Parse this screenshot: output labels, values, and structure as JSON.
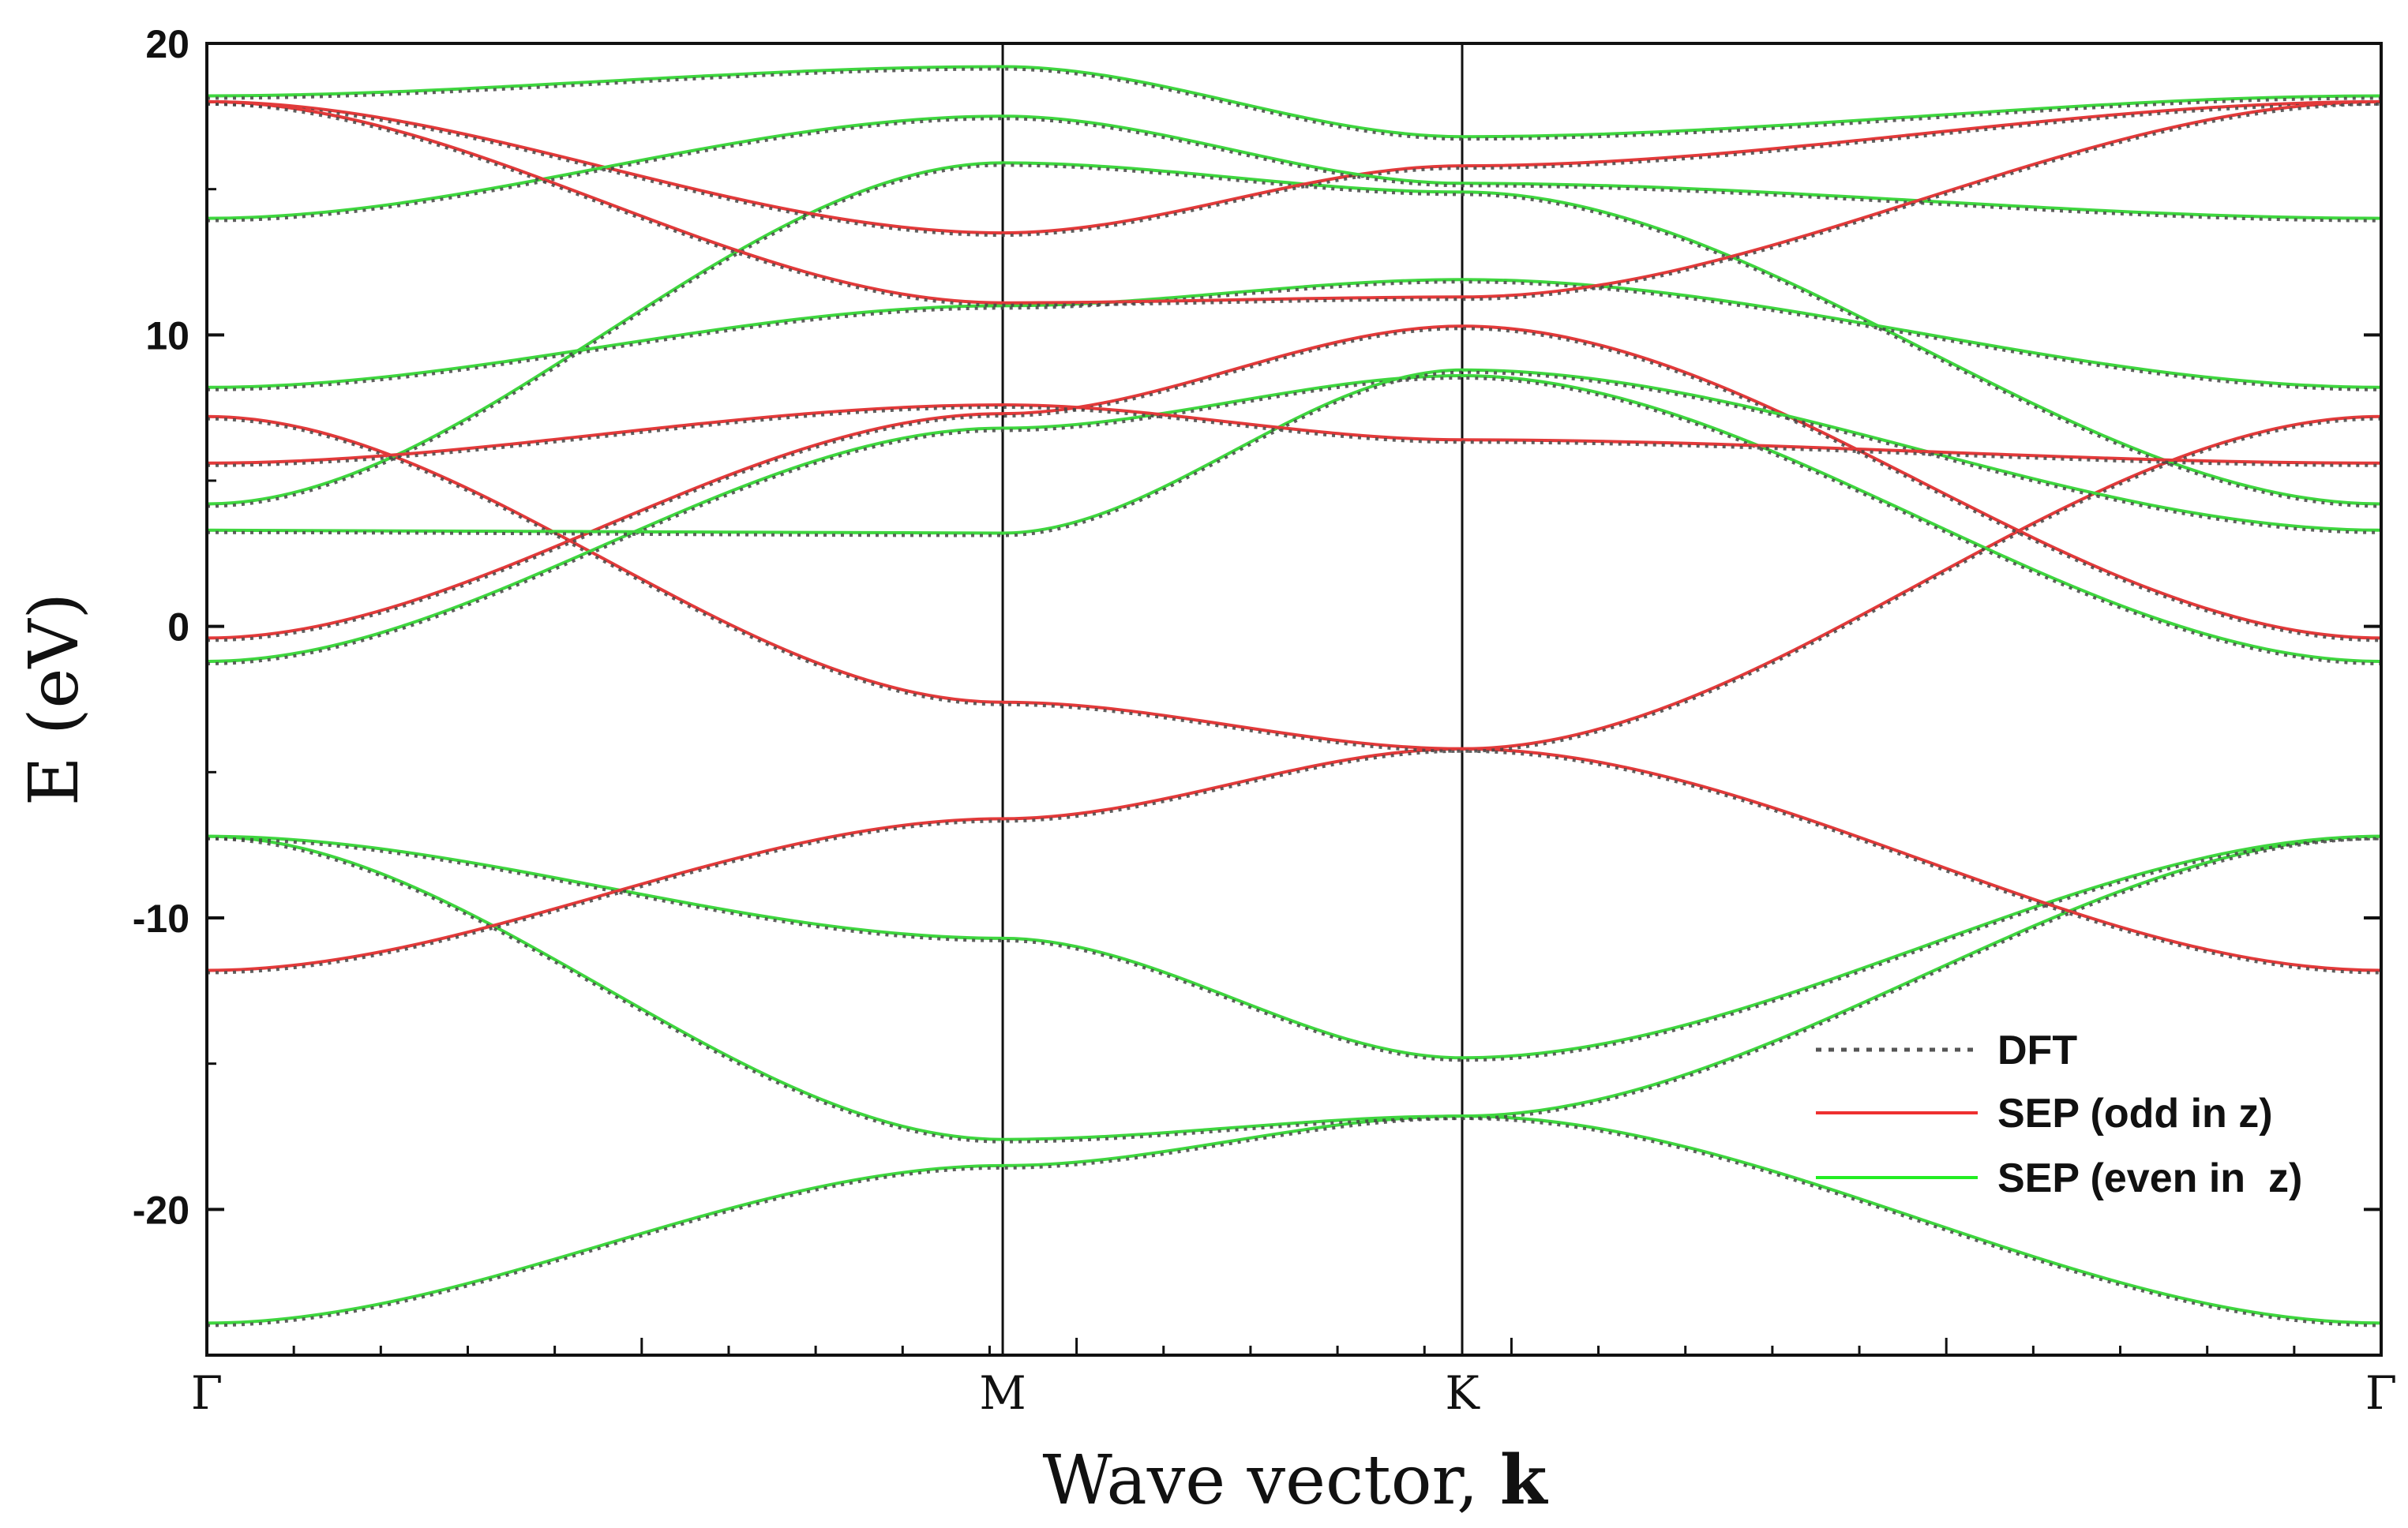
{
  "chart_data": {
    "type": "line",
    "title": "",
    "xlabel_main": "Wave vector, ",
    "xlabel_bold": "k",
    "ylabel": "E (eV)",
    "ylim": [
      -25,
      20
    ],
    "yticks": [
      20,
      10,
      0,
      -10,
      -20
    ],
    "ytick_labels": [
      "20",
      "10",
      "0",
      "-10",
      "-20"
    ],
    "x_path": [
      "Γ",
      "M",
      "K",
      "Γ"
    ],
    "x_positions": [
      0,
      1,
      1.5773,
      2.732
    ],
    "legend": [
      {
        "label": "DFT",
        "style": "dotted",
        "color": "#555555"
      },
      {
        "label": "SEP (odd in z)",
        "style": "solid",
        "color": "#ee3030"
      },
      {
        "label": "SEP (even in  z)",
        "style": "solid",
        "color": "#22ee22"
      }
    ],
    "colors": {
      "odd": "#e23a3a",
      "even": "#3fd63f",
      "dft": "#444444"
    },
    "series": [
      {
        "name": "even-1",
        "parity": "even",
        "values": [
          -23.9,
          -18.5,
          -16.8,
          -23.9
        ]
      },
      {
        "name": "even-2",
        "parity": "even",
        "values": [
          -7.2,
          -17.6,
          -16.8,
          -7.2
        ]
      },
      {
        "name": "even-3",
        "parity": "even",
        "values": [
          -7.2,
          -10.7,
          -14.8,
          -7.2
        ]
      },
      {
        "name": "odd-1",
        "parity": "odd",
        "values": [
          -11.8,
          -6.6,
          -4.2,
          -11.8
        ]
      },
      {
        "name": "odd-2",
        "parity": "odd",
        "values": [
          7.2,
          -2.6,
          -4.2,
          7.2
        ]
      },
      {
        "name": "odd-3",
        "parity": "odd",
        "values": [
          -0.4,
          7.3,
          10.3,
          -0.4
        ]
      },
      {
        "name": "even-4",
        "parity": "even",
        "values": [
          -1.2,
          6.8,
          8.6,
          -1.2
        ]
      },
      {
        "name": "even-5",
        "parity": "even",
        "values": [
          3.3,
          3.2,
          8.8,
          3.3
        ]
      },
      {
        "name": "even-6",
        "parity": "even",
        "values": [
          4.2,
          15.9,
          14.9,
          4.2
        ]
      },
      {
        "name": "odd-4",
        "parity": "odd",
        "values": [
          5.6,
          7.6,
          6.4,
          5.6
        ]
      },
      {
        "name": "even-7",
        "parity": "even",
        "values": [
          8.2,
          11.0,
          11.9,
          8.2
        ]
      },
      {
        "name": "odd-5",
        "parity": "odd",
        "values": [
          18.0,
          13.5,
          15.8,
          18.0
        ]
      },
      {
        "name": "even-8",
        "parity": "even",
        "values": [
          14.0,
          17.5,
          15.2,
          14.0
        ]
      },
      {
        "name": "odd-6",
        "parity": "odd",
        "values": [
          18.0,
          11.1,
          11.3,
          18.0
        ]
      },
      {
        "name": "even-9",
        "parity": "even",
        "values": [
          18.2,
          19.2,
          16.8,
          18.2
        ]
      }
    ]
  }
}
